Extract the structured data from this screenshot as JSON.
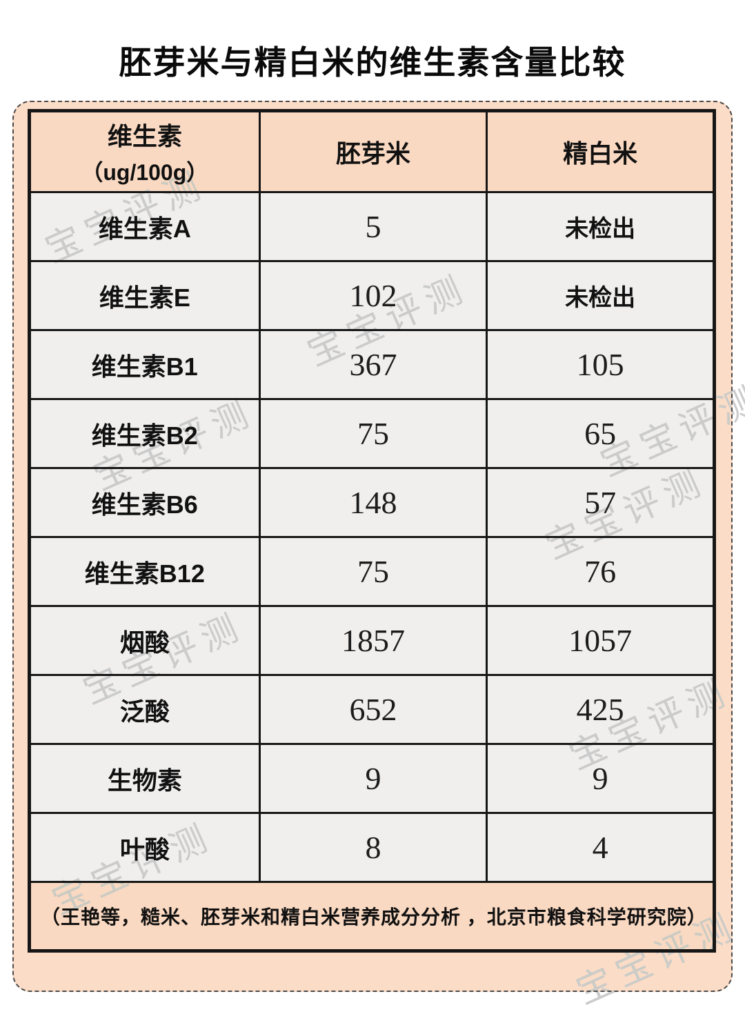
{
  "title": "胚芽米与精白米的维生素含量比较",
  "watermark": {
    "text": "宝宝评测"
  },
  "table": {
    "header": {
      "col1_line1": "维生素",
      "col1_line2": "（ug/100g）",
      "col2": "胚芽米",
      "col3": "精白米"
    },
    "rows": [
      {
        "label": "维生素A",
        "germ_rice": "5",
        "white_rice": "未检出"
      },
      {
        "label": "维生素E",
        "germ_rice": "102",
        "white_rice": "未检出"
      },
      {
        "label": "维生素B1",
        "germ_rice": "367",
        "white_rice": "105"
      },
      {
        "label": "维生素B2",
        "germ_rice": "75",
        "white_rice": "65"
      },
      {
        "label": "维生素B6",
        "germ_rice": "148",
        "white_rice": "57"
      },
      {
        "label": "维生素B12",
        "germ_rice": "75",
        "white_rice": "76"
      },
      {
        "label": "烟酸",
        "germ_rice": "1857",
        "white_rice": "1057"
      },
      {
        "label": "泛酸",
        "germ_rice": "652",
        "white_rice": "425"
      },
      {
        "label": "生物素",
        "germ_rice": "9",
        "white_rice": "9"
      },
      {
        "label": "叶酸",
        "germ_rice": "8",
        "white_rice": "4"
      }
    ],
    "footer": "（王艳等，糙米、胚芽米和精白米营养成分分析 ，北京市粮食科学研究院）"
  },
  "colors": {
    "board_bg": "#fbdcc7",
    "header_bg": "#fad9c2",
    "cell_bg": "#f0efee",
    "border": "#161616",
    "watermark": "#cbcbcb"
  },
  "chart_data": {
    "type": "table",
    "title": "胚芽米与精白米的维生素含量比较",
    "unit": "ug/100g",
    "categories": [
      "维生素A",
      "维生素E",
      "维生素B1",
      "维生素B2",
      "维生素B6",
      "维生素B12",
      "烟酸",
      "泛酸",
      "生物素",
      "叶酸"
    ],
    "series": [
      {
        "name": "胚芽米",
        "values": [
          5,
          102,
          367,
          75,
          148,
          75,
          1857,
          652,
          9,
          8
        ]
      },
      {
        "name": "精白米",
        "values": [
          "未检出",
          "未检出",
          105,
          65,
          57,
          76,
          1057,
          425,
          9,
          4
        ]
      }
    ],
    "source": "（王艳等，糙米、胚芽米和精白米营养成分分析 ，北京市粮食科学研究院）"
  }
}
